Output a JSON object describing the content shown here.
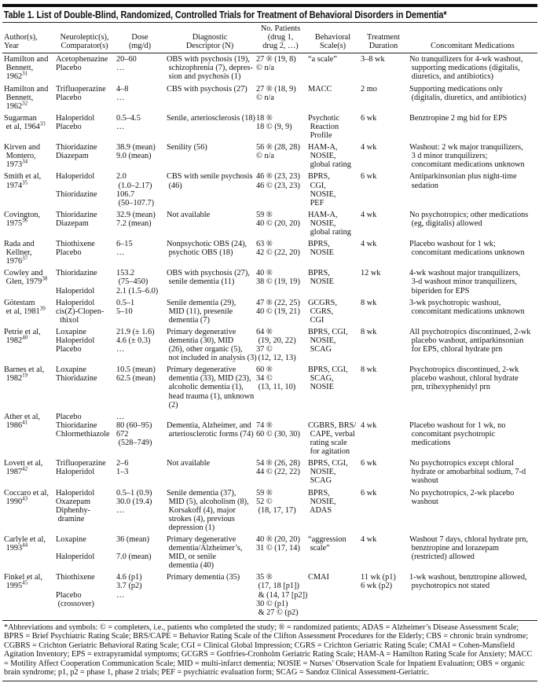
{
  "title": "Table 1. List of Double-Blind, Randomized, Controlled Trials for Treatment of Behavioral Disorders in Dementia*",
  "columns": [
    "Author(s),\nYear",
    "Neuroleptic(s),\nComparator(s)",
    "Dose\n(mg/d)",
    "Diagnostic\nDescriptor (N)",
    "No. Patients\n(drug 1,\ndrug 2, …)",
    "Behavioral\nScale(s)",
    "Treatment\nDuration",
    "Concomitant Medications"
  ],
  "rows": [
    {
      "author": "Hamilton and\n Bennett,\n 1962",
      "ref": "31",
      "drugs": "Acetophenazine\nPlacebo",
      "dose": "20–60\n…",
      "diag": "OBS with psychosis (19),\n schizophrenia (7), depres-\n sion and psychosis (1)",
      "patients": "27 ® (19, 8)\n© n/a",
      "scale": "“a scale”",
      "duration": "3–8 wk",
      "meds": "No tranquilizers for 4-wk washout,\n supporting medications (digitalis,\n diuretics, and antibiotics)"
    },
    {
      "author": "Hamilton and\n Bennett,\n 1962",
      "ref": "32",
      "drugs": "Trifluoperazine\nPlacebo",
      "dose": "4–8\n…",
      "diag": "CBS with psychosis (27)",
      "patients": "27 ® (18, 9)\n© n/a",
      "scale": "MACC",
      "duration": "2 mo",
      "meds": "Supporting medications only\n (digitalis, diuretics, and antibiotics)"
    },
    {
      "author": "Sugarman\n et al, 1964",
      "ref": "33",
      "drugs": "Haloperidol\nPlacebo",
      "dose": "0.5–4.5\n…",
      "diag": "Senile, arteriosclerosis (18)",
      "patients": "18 ®\n18 © (9, 9)",
      "scale": "Psychotic\n Reaction\n Profile",
      "duration": "6 wk",
      "meds": "Benztropine 2 mg bid for EPS"
    },
    {
      "author": "Kirven and\n Montero,\n 1973",
      "ref": "34",
      "drugs": "Thioridazine\nDiazepam",
      "dose": "38.9 (mean)\n9.0 (mean)",
      "diag": "Senility (56)",
      "patients": "56 ® (28, 28)\n© n/a",
      "scale": "HAM-A,\n NOSIE,\n global rating",
      "duration": "4 wk",
      "meds": "Washout: 2 wk major tranquilizers,\n 3 d minor tranquilizers;\n concomitant medications unknown"
    },
    {
      "author": "Smith et al,\n 1974",
      "ref": "35",
      "drugs": "Haloperidol\n\nThioridazine",
      "dose": "2.0\n (1.0–2.17)\n106.7\n (50–107.7)",
      "diag": "CBS with senile psychosis\n (46)",
      "patients": "46 ® (23, 23)\n46 © (23, 23)",
      "scale": "BPRS,\n CGI,\n NOSIE,\n PEF",
      "duration": "6 wk",
      "meds": "Antiparkinsonian plus night-time\n sedation"
    },
    {
      "author": "Covington,\n 1975",
      "ref": "36",
      "drugs": "Thioridazine\nDiazepam",
      "dose": "32.9 (mean)\n7.2 (mean)",
      "diag": "Not available",
      "patients": "59 ®\n40 © (20, 20)",
      "scale": "HAM-A,\n NOSIE,\n global rating",
      "duration": "4 wk",
      "meds": "No psychotropics; other medications\n (eg, digitalis) allowed"
    },
    {
      "author": "Rada and\n Kellner,\n 1976",
      "ref": "37",
      "drugs": "Thiothixene\nPlacebo",
      "dose": "6–15\n…",
      "diag": "Nonpsychotic OBS (24),\n psychotic OBS (18)",
      "patients": "63 ®\n42 © (22, 20)",
      "scale": "BPRS,\n NOSIE",
      "duration": "4 wk",
      "meds": "Placebo washout for 1 wk;\n concomitant medications unknown"
    },
    {
      "author": "Cowley and\n Glen, 1979",
      "ref": "38",
      "drugs": "Thioridazine\n\nHaloperidol",
      "dose": "153.2\n (75–450)\n2.1 (1.5–6.0)",
      "diag": "OBS with psychosis (27),\n senile dementia (11)",
      "patients": "40 ®\n38 © (19, 19)",
      "scale": "BPRS,\n NOSIE",
      "duration": "12 wk",
      "meds": "4-wk washout major tranquilizers,\n 3-d washout minor tranquilizers,\n biperiden for EPS"
    },
    {
      "author": "Götestam\n et al, 1981",
      "ref": "39",
      "drugs": "Haloperidol\ncis(Z)-Clopen-\n  thixol",
      "dose": "0.5–1\n5–10",
      "diag": "Senile dementia (29),\n MID (11), presenile\n dementia (7)",
      "patients": "47 ® (22, 25)\n40 © (19, 21)",
      "scale": "GCGRS,\n CGRS,\n CGI",
      "duration": "8 wk",
      "meds": "3-wk psychotropic washout,\n concomitant medications unknown"
    },
    {
      "author": "Petrie et al,\n 1982",
      "ref": "40",
      "drugs": "Loxapine\nHaloperidol\nPlacebo",
      "dose": "21.9 (± 1.6)\n4.6 (± 0.3)\n…",
      "diag": "Primary degenerative\n dementia (30), MID\n (26), other organic (5),\n not included in analysis (3)",
      "patients": "64 ®\n (19, 20, 22)\n37 ©\n (12, 12, 13)",
      "scale": "BPRS, CGI,\n NOSIE,\n SCAG",
      "duration": "8 wk",
      "meds": "All psychotropics discontinued, 2-wk\n placebo washout, antiparkinsonian\n for EPS, chloral hydrate prn"
    },
    {
      "author": "Barnes et al,\n 1982",
      "ref": "19",
      "drugs": "Loxapine\nThioridazine",
      "dose": "10.5 (mean)\n62.5 (mean)",
      "diag": "Primary degenerative\n dementia (33), MID (23),\n alcoholic dementia (1),\n head trauma (1), unknown\n (2)",
      "patients": "60 ®\n34 ©\n (13, 11, 10)",
      "scale": "BPRS, CGI,\n SCAG,\n NOSIE",
      "duration": "8 wk",
      "meds": "Psychotropics discontinued, 2-wk\n placebo washout, chloral hydrate\n prn, trihexyphenidyl prn"
    },
    {
      "author": "Ather et al,\n 1986",
      "ref": "41",
      "drugs": "Placebo\nThioridazine\nChlormethiazole",
      "dose": "…\n80 (60–95)\n672\n (528–749)",
      "diag": "\nDementia, Alzheimer, and\n arteriosclerotic forms (74)",
      "patients": "\n74 ®\n60 © (30, 30)",
      "scale": "\nCGBRS, BRS/\n CAPE, verbal\n rating scale\n for agitation",
      "duration": "\n4 wk",
      "meds": "\nPlacebo washout for 1 wk, no\n concomitant psychotropic\n medications"
    },
    {
      "author": "Lovett et al,\n 1987",
      "ref": "42",
      "drugs": "Trifluoperazine\nHaloperidol",
      "dose": "2–6\n1–3",
      "diag": "Not available",
      "patients": "54 ® (26, 28)\n44 © (22, 22)",
      "scale": "BPRS, CGI,\n NOSIE,\n SCAG",
      "duration": "6 wk",
      "meds": "No psychotropics except chloral\n hydrate or amobarbital sodium, 7-d\n washout"
    },
    {
      "author": "Coccaro et al,\n 1990",
      "ref": "43",
      "drugs": "Haloperidol\nOxazepam\nDiphenhy-\n dramine",
      "dose": "0.5–1 (0.9)\n30.0 (19.4)\n…",
      "diag": "Senile dementia (37),\n MID (5), alcoholism (8),\n Korsakoff (4), major\n strokes (4), previous\n depression (1)",
      "patients": "59 ®\n52 ©\n (18, 17, 17)",
      "scale": "BPRS,\n NOSIE,\n ADAS",
      "duration": "6 wk",
      "meds": "No psychotropics, 2-wk placebo\n washout"
    },
    {
      "author": "Carlyle et al,\n 1993",
      "ref": "44",
      "drugs": "Loxapine\n\nHaloperidol",
      "dose": "36 (mean)\n\n7.0 (mean)",
      "diag": "Primary degenerative\n dementia/Alzheimer’s,\n MID, or senile\n dementia (40)",
      "patients": "40 ® (20, 20)\n31 © (17, 14)",
      "scale": "“aggression\n scale”",
      "duration": "4 wk",
      "meds": "Washout 7 days, chloral hydrate prn,\n benztropine and lorazepam\n (restricted) allowed"
    },
    {
      "author": "Finkel et al,\n 1995",
      "ref": "45",
      "drugs": "Thiothixene\n\nPlacebo\n (crossover)",
      "dose": "4.6 (p1)\n3.7 (p2)\n…",
      "diag": "Primary dementia (35)",
      "patients": "35 ®\n (17, 18 [p1])\n & (14, 17 [p2])\n30 © (p1)\n & 27 © (p2)",
      "scale": "CMAI",
      "duration": "11 wk (p1)\n6 wk (p2)",
      "meds": "1-wk washout, benztropine allowed,\n psychotropics not stated"
    }
  ],
  "footnote": "*Abbreviations and symbols: © = completers, i.e., patients who completed the study; ® = randomized patients; ADAS = Alzheimer’s Disease Assessment Scale; BPRS = Brief Psychiatric Rating Scale; BRS/CAPE = Behavior Rating Scale of the Clifton Assessment Procedures for the Elderly; CBS = chronic brain syndrome; CGBRS = Crichton Geriatric Behavioral Rating Scale; CGI = Clinical Global Impression; CGRS = Crichton Geriatric Rating Scale; CMAI = Cohen-Mansfield Agitation Inventory; EPS = extrapyramidal symptoms; GCGRS = Gottfries-Cronholm Geriatric Rating Scale; HAM-A = Hamilton Rating Scale for Anxiety; MACC = Motility Affect Cooperation Communication Scale; MID = multi-infarct dementia; NOSIE = Nurses’ Observation Scale for Inpatient Evaluation; OBS = organic brain syndrome; p1, p2 = phase 1, phase 2 trials; PEF = psychiatric evaluation form; SCAG = Sandoz Clinical Assessment-Geriatric."
}
